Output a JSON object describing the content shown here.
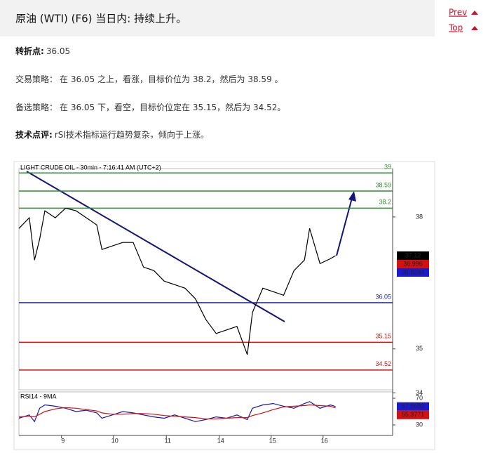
{
  "header": {
    "title": "原油 (WTI) (F6) 当日内: 持续上升。"
  },
  "nav": {
    "prev": "Prev",
    "top": "Top"
  },
  "paragraphs": [
    {
      "label": "转折点:",
      "text": "36.05"
    },
    {
      "label": "交易策略：",
      "text": "在 36.05 之上，看涨，目标价位为 38.2，然后为 38.59 。"
    },
    {
      "label": "备选策略：",
      "text": "在 36.05 下，看空，目标价位定在 35.15，然后为 34.52。"
    },
    {
      "label": "技术点评:",
      "text": "rSI技术指标运行趋势复杂，倾向于上涨。"
    }
  ],
  "chart_data": [
    {
      "type": "line",
      "title": "LIGHT CRUDE OIL - 30min - 7:16:41 AM (UTC+2)",
      "x": [
        0,
        2,
        3,
        4,
        5,
        7,
        9,
        11,
        13,
        15,
        16,
        18,
        20,
        22,
        24,
        26,
        28,
        30,
        32,
        34,
        36,
        38,
        40,
        42,
        44,
        45,
        47,
        49,
        51,
        53,
        55,
        56,
        58,
        60,
        61
      ],
      "values": [
        37.74,
        37.98,
        37.02,
        37.5,
        38.14,
        37.98,
        38.2,
        38.14,
        37.98,
        37.82,
        37.26,
        37.34,
        37.42,
        37.42,
        36.86,
        36.78,
        36.54,
        36.46,
        36.38,
        36.14,
        35.67,
        35.35,
        35.43,
        35.51,
        34.87,
        35.83,
        36.38,
        36.3,
        36.22,
        36.78,
        37.02,
        37.74,
        36.94,
        37.05,
        37.12
      ],
      "color": "#000000",
      "xlim": [
        0,
        72
      ],
      "ylim": [
        34.07,
        39.1
      ],
      "yticks": [
        38,
        35,
        34
      ],
      "levels": [
        {
          "value": 39,
          "color": "#2e8b2e"
        },
        {
          "value": 38.59,
          "color": "#2e8b2e"
        },
        {
          "value": 38.2,
          "color": "#2e8b2e"
        },
        {
          "value": 36.05,
          "color": "#1a1aa6"
        },
        {
          "value": 35.15,
          "color": "#d41010"
        },
        {
          "value": 34.52,
          "color": "#d41010"
        }
      ],
      "markers": [
        {
          "value": 37.12,
          "color": "#000000"
        },
        {
          "value": 36.996,
          "color": "#d41010"
        },
        {
          "value": 36.8284,
          "color": "#1a1ad0"
        }
      ]
    },
    {
      "type": "line",
      "title": "RSI14 - 9MA",
      "x": [
        0,
        2,
        3,
        4,
        5,
        7,
        9,
        11,
        13,
        15,
        16,
        18,
        20,
        22,
        24,
        26,
        28,
        30,
        32,
        34,
        36,
        38,
        40,
        42,
        44,
        45,
        47,
        49,
        51,
        53,
        55,
        56,
        58,
        60,
        61
      ],
      "series": [
        {
          "color": "#1a1aa6",
          "values": [
            40,
            45,
            35,
            55,
            60,
            58,
            55,
            50,
            52,
            48,
            40,
            45,
            50,
            48,
            45,
            42,
            40,
            45,
            40,
            35,
            38,
            42,
            40,
            45,
            38,
            55,
            60,
            62,
            58,
            55,
            62,
            65,
            55,
            60,
            57.5683
          ]
        },
        {
          "color": "#d41010",
          "values": [
            42,
            43,
            42,
            46,
            50,
            54,
            56,
            55,
            53,
            51,
            48,
            46,
            46,
            47,
            47,
            46,
            44,
            43,
            42,
            41,
            39,
            39,
            40,
            41,
            41,
            44,
            48,
            53,
            57,
            58,
            59,
            60,
            59,
            58,
            55.3771
          ]
        }
      ],
      "xlim": [
        0,
        72
      ],
      "ylim": [
        14.2,
        79.5
      ],
      "yticks": [
        70,
        30
      ],
      "xticks": [
        {
          "value": 8.2,
          "label": "9"
        },
        {
          "value": 18.2,
          "label": "10"
        },
        {
          "value": 28.4,
          "label": "11"
        },
        {
          "value": 38.6,
          "label": "14"
        },
        {
          "value": 48.6,
          "label": "15"
        },
        {
          "value": 58.6,
          "label": "16"
        }
      ],
      "markers": [
        {
          "value": 57.5683,
          "color": "#1a1ad0"
        },
        {
          "value": 55.3771,
          "color": "#d41010"
        }
      ]
    }
  ]
}
